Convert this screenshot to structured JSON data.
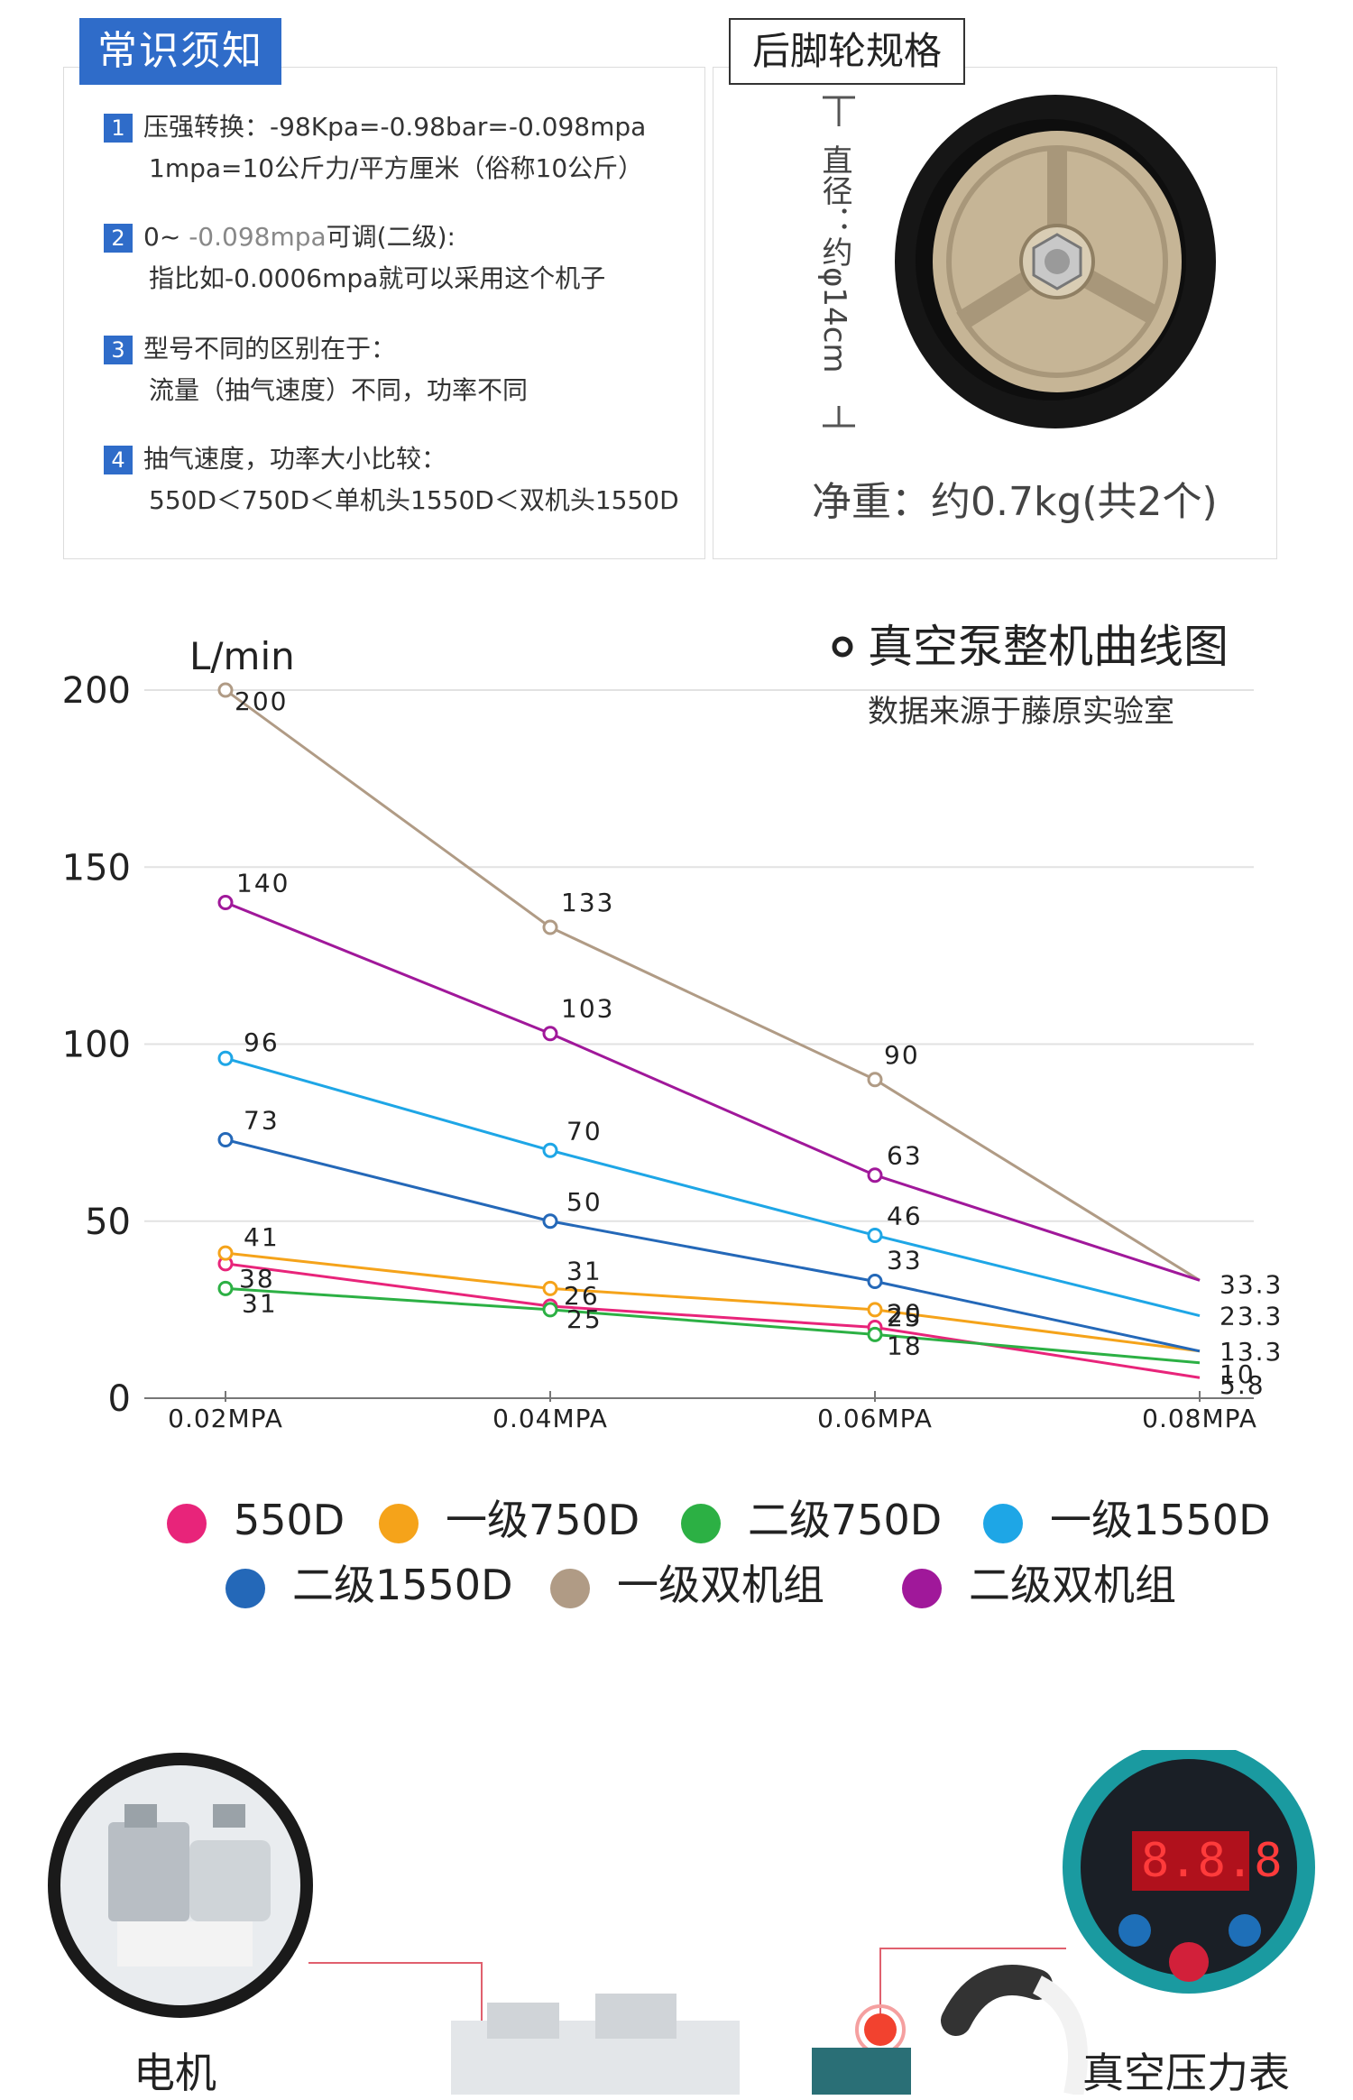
{
  "notes": {
    "tab_label": "常识须知",
    "items": [
      {
        "num": "1",
        "line1": "压强转换：-98Kpa=-0.98bar=-0.098mpa",
        "line2": "1mpa=10公斤力/平方厘米（俗称10公斤）"
      },
      {
        "num": "2",
        "line1_a": "0~ ",
        "line1_b": "-0.098mpa",
        "line1_c": "可调(二级):",
        "line2": "指比如-0.0006mpa就可以采用这个机子"
      },
      {
        "num": "3",
        "line1": "型号不同的区别在于：",
        "line2": "流量（抽气速度）不同，功率不同"
      },
      {
        "num": "4",
        "line1": "抽气速度，功率大小比较：",
        "line2": "550D＜750D＜单机头1550D＜双机头1550D"
      }
    ]
  },
  "wheel": {
    "tab_label": "后脚轮规格",
    "diameter_label": "直径：约φ14cm",
    "weight_label": "净重：约0.7kg(共2个)"
  },
  "chart_data": {
    "type": "line",
    "title": "真空泵整机曲线图",
    "subtitle": "数据来源于藤原实验室",
    "ylabel": "L/min",
    "xlabel": "",
    "x": [
      "0.02MPA",
      "0.04MPA",
      "0.06MPA",
      "0.08MPA"
    ],
    "ylim": [
      0,
      200
    ],
    "yticks": [
      0,
      50,
      100,
      150,
      200
    ],
    "grid": true,
    "legend_position": "bottom",
    "series": [
      {
        "name": "550D",
        "color": "#e8247a",
        "values": [
          38,
          26,
          20,
          5.8
        ],
        "labels": [
          "38",
          "26",
          "20",
          "5.8"
        ]
      },
      {
        "name": "一级750D",
        "color": "#f5a31a",
        "values": [
          41,
          31,
          25,
          13.3
        ],
        "labels": [
          "41",
          "31",
          "25",
          "13.3"
        ]
      },
      {
        "name": "二级750D",
        "color": "#2cb044",
        "values": [
          31,
          25,
          18,
          10
        ],
        "labels": [
          "31",
          "25",
          "18",
          "10"
        ]
      },
      {
        "name": "一级1550D",
        "color": "#1ea6e6",
        "values": [
          96,
          70,
          46,
          23.3
        ],
        "labels": [
          "96",
          "70",
          "46",
          "23.3"
        ]
      },
      {
        "name": "二级1550D",
        "color": "#2468b8",
        "values": [
          73,
          50,
          33,
          13.3
        ],
        "labels": [
          "73",
          "50",
          "33",
          ""
        ]
      },
      {
        "name": "一级双机组",
        "color": "#b09b85",
        "values": [
          200,
          133,
          90,
          33.3
        ],
        "labels": [
          "200",
          "133",
          "90",
          "33.3"
        ]
      },
      {
        "name": "二级双机组",
        "color": "#a0189a",
        "values": [
          140,
          103,
          63,
          33.3
        ],
        "labels": [
          "140",
          "103",
          "63",
          ""
        ]
      }
    ]
  },
  "callouts": {
    "motor": "电机",
    "gauge": "真空压力表"
  },
  "colors": {
    "accent": "#2f6cc9",
    "wheel_rim": "#c9b99a",
    "tire": "#1a1a1a"
  }
}
